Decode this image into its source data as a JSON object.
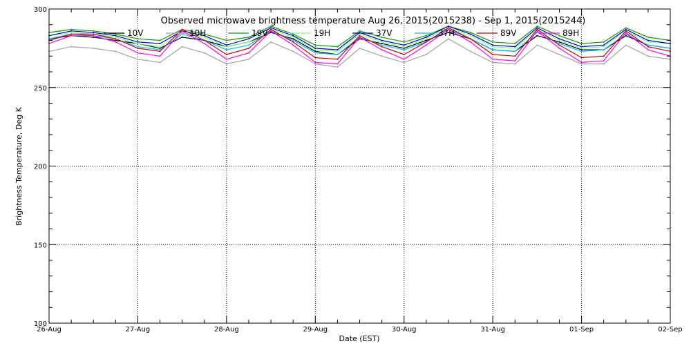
{
  "chart_data": {
    "type": "line",
    "title": "Observed microwave brightness temperature Aug 26, 2015(2015238) - Sep  1, 2015(2015244)",
    "xlabel": "Date (EST)",
    "ylabel": "Brightness Temperature, Deg K",
    "ylim": [
      100,
      300
    ],
    "yticks": [
      100,
      150,
      200,
      250,
      300
    ],
    "xlim": [
      "2015-08-26",
      "2015-09-02"
    ],
    "categories": [
      "26-Aug",
      "27-Aug",
      "28-Aug",
      "29-Aug",
      "30-Aug",
      "31-Aug",
      "01-Sep",
      "02-Sep"
    ],
    "x": [
      "2015-08-26T00:00",
      "2015-08-26T06:00",
      "2015-08-26T12:00",
      "2015-08-26T18:00",
      "2015-08-27T00:00",
      "2015-08-27T06:00",
      "2015-08-27T12:00",
      "2015-08-27T18:00",
      "2015-08-28T00:00",
      "2015-08-28T06:00",
      "2015-08-28T12:00",
      "2015-08-28T18:00",
      "2015-08-29T00:00",
      "2015-08-29T06:00",
      "2015-08-29T12:00",
      "2015-08-29T18:00",
      "2015-08-30T00:00",
      "2015-08-30T06:00",
      "2015-08-30T12:00",
      "2015-08-30T18:00",
      "2015-08-31T00:00",
      "2015-08-31T06:00",
      "2015-08-31T12:00",
      "2015-08-31T18:00",
      "2015-09-01T00:00",
      "2015-09-01T06:00",
      "2015-09-01T12:00",
      "2015-09-01T18:00",
      "2015-09-02T00:00"
    ],
    "grid": true,
    "legend_position": "top",
    "series": [
      {
        "name": "10V",
        "color": "#000000",
        "values": [
          281,
          283,
          282,
          280,
          278,
          275,
          282,
          280,
          276,
          279,
          285,
          281,
          273,
          271,
          281,
          278,
          275,
          280,
          285,
          281,
          274,
          273,
          283,
          279,
          274,
          274,
          283,
          277,
          275
        ]
      },
      {
        "name": "10H",
        "color": "#a0a0a0",
        "values": [
          273,
          276,
          275,
          273,
          268,
          266,
          276,
          272,
          265,
          268,
          279,
          273,
          265,
          263,
          275,
          270,
          266,
          271,
          281,
          273,
          266,
          265,
          277,
          271,
          265,
          265,
          277,
          270,
          268
        ]
      },
      {
        "name": "19V",
        "color": "#00a000",
        "values": [
          285,
          287,
          286,
          284,
          281,
          280,
          287,
          284,
          280,
          282,
          289,
          284,
          277,
          276,
          286,
          282,
          279,
          283,
          289,
          285,
          279,
          278,
          289,
          283,
          278,
          279,
          288,
          282,
          280
        ]
      },
      {
        "name": "19H",
        "color": "#80ff80",
        "values": [
          283,
          285,
          284,
          282,
          278,
          276,
          285,
          282,
          276,
          279,
          287,
          282,
          274,
          273,
          284,
          279,
          276,
          281,
          288,
          283,
          276,
          275,
          287,
          280,
          275,
          276,
          286,
          279,
          278
        ]
      },
      {
        "name": "37V",
        "color": "#0000cc",
        "values": [
          283,
          286,
          285,
          283,
          279,
          278,
          286,
          283,
          277,
          281,
          288,
          283,
          275,
          274,
          285,
          280,
          277,
          282,
          289,
          284,
          277,
          276,
          288,
          281,
          276,
          277,
          287,
          280,
          278
        ]
      },
      {
        "name": "37H",
        "color": "#00c0ff",
        "values": [
          281,
          284,
          283,
          281,
          276,
          274,
          284,
          280,
          274,
          277,
          286,
          280,
          272,
          271,
          282,
          277,
          274,
          279,
          287,
          281,
          274,
          273,
          285,
          278,
          273,
          274,
          284,
          277,
          275
        ]
      },
      {
        "name": "89V",
        "color": "#cc0000",
        "values": [
          280,
          284,
          284,
          281,
          275,
          273,
          287,
          280,
          271,
          275,
          287,
          279,
          269,
          268,
          283,
          276,
          271,
          279,
          288,
          281,
          271,
          270,
          287,
          277,
          269,
          270,
          286,
          276,
          273
        ]
      },
      {
        "name": "89H",
        "color": "#ff00ff",
        "values": [
          278,
          283,
          283,
          279,
          272,
          270,
          286,
          278,
          268,
          272,
          286,
          277,
          266,
          265,
          282,
          274,
          268,
          277,
          287,
          279,
          268,
          267,
          286,
          275,
          266,
          267,
          285,
          274,
          270
        ]
      }
    ]
  }
}
